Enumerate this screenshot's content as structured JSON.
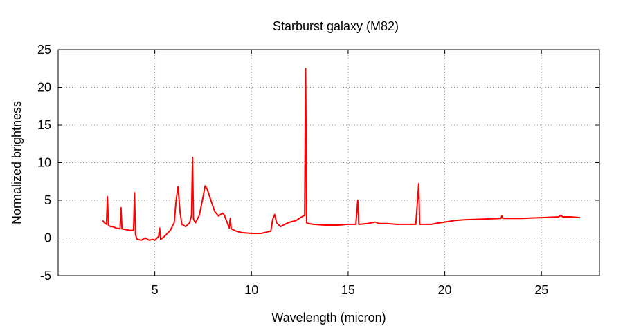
{
  "chart_data": {
    "type": "line",
    "title": "Starburst galaxy (M82)",
    "xlabel": "Wavelength (micron)",
    "ylabel": "Normalized brightness",
    "xlim": [
      0,
      28
    ],
    "ylim": [
      -5,
      25
    ],
    "xticks": [
      5,
      10,
      15,
      20,
      25
    ],
    "yticks": [
      -5,
      0,
      5,
      10,
      15,
      20,
      25
    ],
    "grid": true,
    "series": [
      {
        "color": "#ff0000",
        "x": [
          2.3,
          2.4,
          2.5,
          2.55,
          2.6,
          2.7,
          2.8,
          3.0,
          3.2,
          3.25,
          3.3,
          3.5,
          3.7,
          3.9,
          3.95,
          4.0,
          4.05,
          4.1,
          4.3,
          4.5,
          4.7,
          4.9,
          5.0,
          5.2,
          5.25,
          5.3,
          5.5,
          5.8,
          6.0,
          6.1,
          6.2,
          6.3,
          6.4,
          6.6,
          6.8,
          6.9,
          6.95,
          7.0,
          7.1,
          7.3,
          7.5,
          7.6,
          7.7,
          7.9,
          8.1,
          8.3,
          8.5,
          8.6,
          8.7,
          8.85,
          8.9,
          8.95,
          9.2,
          9.5,
          10.0,
          10.5,
          11.0,
          11.1,
          11.2,
          11.3,
          11.5,
          11.8,
          12.0,
          12.3,
          12.6,
          12.75,
          12.8,
          12.85,
          12.95,
          13.2,
          13.8,
          14.5,
          15.0,
          15.4,
          15.5,
          15.55,
          15.6,
          16.0,
          16.4,
          16.5,
          16.6,
          17.0,
          17.5,
          18.0,
          18.5,
          18.65,
          18.7,
          18.75,
          19.0,
          19.3,
          19.5,
          20.0,
          20.5,
          21.0,
          22.0,
          22.9,
          22.95,
          23.0,
          24.0,
          25.0,
          25.9,
          26.0,
          26.1,
          26.5,
          27.0
        ],
        "y": [
          2.3,
          2.0,
          1.8,
          5.5,
          1.7,
          1.5,
          1.5,
          1.3,
          1.2,
          4.0,
          1.2,
          1.1,
          1.0,
          1.0,
          6.0,
          0.5,
          0.0,
          -0.2,
          -0.3,
          0.0,
          -0.3,
          -0.2,
          -0.3,
          0.2,
          1.3,
          -0.2,
          0.2,
          1.0,
          2.0,
          5.0,
          6.8,
          3.5,
          1.8,
          1.5,
          2.0,
          3.0,
          10.7,
          2.5,
          2.0,
          3.0,
          5.5,
          6.9,
          6.5,
          5.0,
          3.5,
          2.9,
          3.3,
          3.0,
          2.3,
          1.3,
          2.6,
          1.2,
          0.9,
          0.7,
          0.6,
          0.6,
          0.9,
          2.5,
          3.1,
          2.0,
          1.5,
          1.9,
          2.1,
          2.3,
          2.8,
          3.0,
          22.5,
          2.0,
          1.9,
          1.8,
          1.7,
          1.7,
          1.8,
          1.8,
          5.0,
          1.8,
          1.8,
          1.9,
          2.1,
          2.0,
          1.9,
          1.9,
          1.8,
          1.8,
          1.8,
          7.2,
          1.8,
          1.8,
          1.8,
          1.8,
          1.9,
          2.1,
          2.3,
          2.4,
          2.5,
          2.6,
          2.9,
          2.6,
          2.6,
          2.7,
          2.8,
          3.0,
          2.8,
          2.8,
          2.7
        ]
      }
    ]
  }
}
